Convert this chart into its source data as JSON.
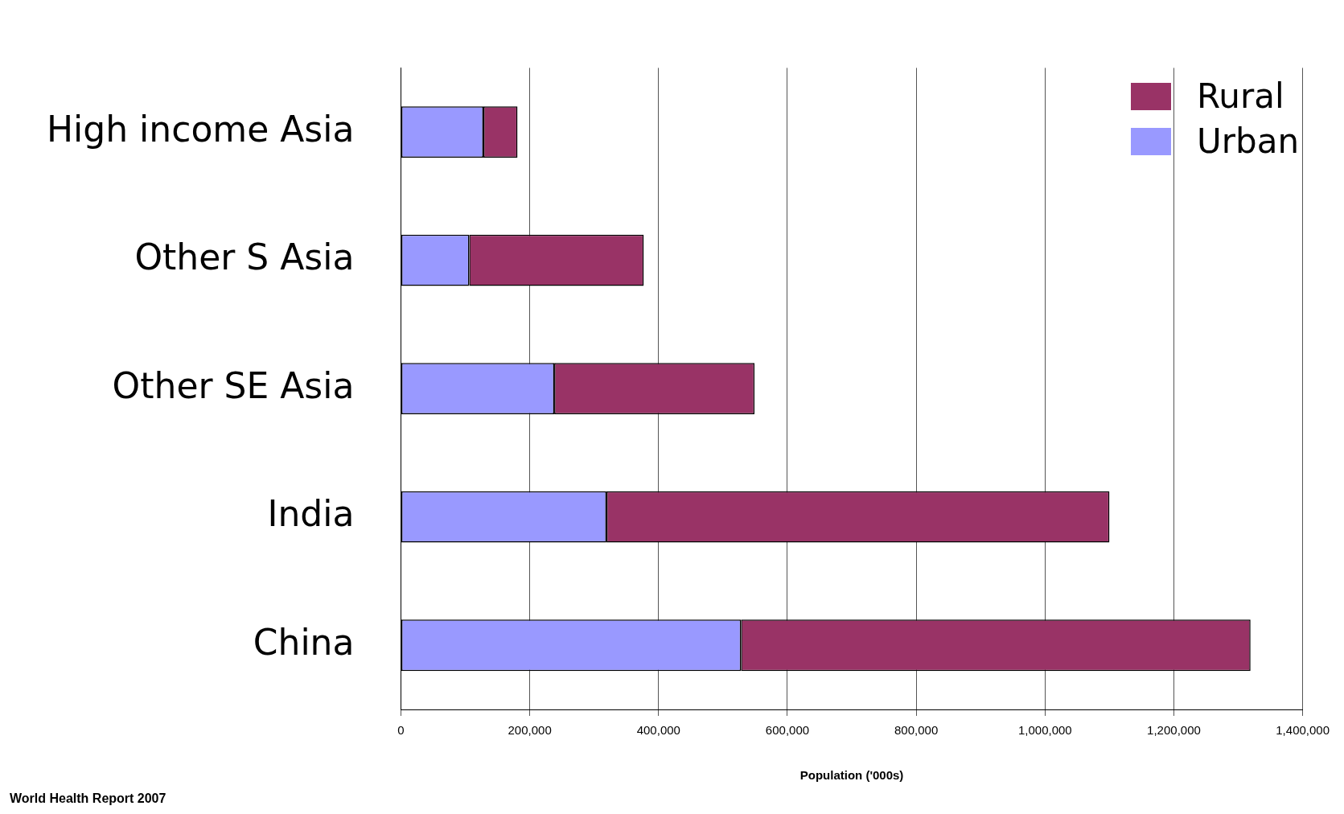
{
  "chart_data": {
    "type": "bar",
    "orientation": "horizontal",
    "stacked": true,
    "categories": [
      "High income Asia",
      "Other S Asia",
      "Other SE Asia",
      "India",
      "China"
    ],
    "series": [
      {
        "name": "Urban",
        "color": "#9999ff",
        "values": [
          128000,
          106000,
          238000,
          319000,
          528000
        ]
      },
      {
        "name": "Rural",
        "color": "#993366",
        "values": [
          53000,
          271000,
          311000,
          781000,
          791000
        ]
      }
    ],
    "xlabel": "Population ('000s)",
    "xlim": [
      0,
      1400000
    ],
    "xticks": [
      0,
      {
        "value": 200000,
        "label": "200,000"
      },
      {
        "value": 400000,
        "label": "400,000"
      },
      {
        "value": 600000,
        "label": "600,000"
      },
      {
        "value": 800000,
        "label": "800,000"
      },
      {
        "value": 1000000,
        "label": "1,000,000"
      },
      {
        "value": 1200000,
        "label": "1,200,000"
      },
      {
        "value": 1400000,
        "label": "1,400,000"
      }
    ],
    "grid": "x",
    "legend": "top right",
    "annotations": [
      "World Health Report 2007"
    ]
  }
}
